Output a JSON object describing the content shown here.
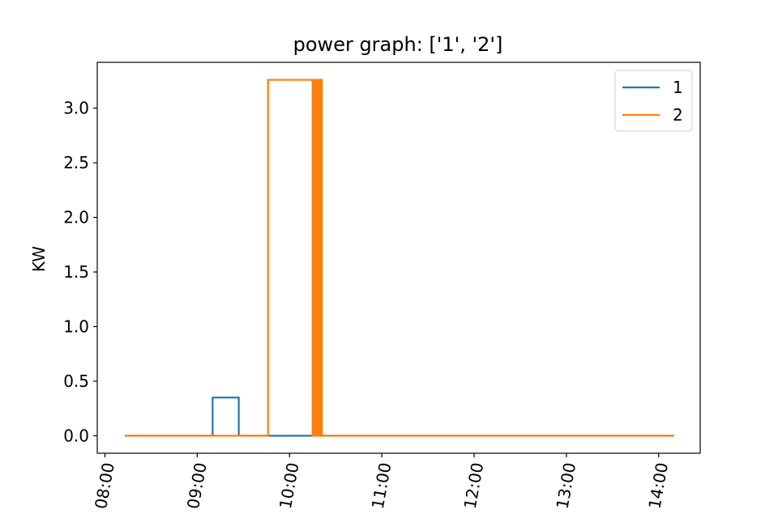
{
  "chart_data": {
    "type": "line",
    "title": "power graph: ['1', '2']",
    "xlabel": "",
    "ylabel": "KW",
    "xlim": [
      "07:55",
      "14:27"
    ],
    "ylim": [
      -0.16,
      3.42
    ],
    "x_ticks": [
      "08:00",
      "09:00",
      "10:00",
      "11:00",
      "12:00",
      "13:00",
      "14:00"
    ],
    "y_ticks": [
      "0.0",
      "0.5",
      "1.0",
      "1.5",
      "2.0",
      "2.5",
      "3.0"
    ],
    "grid": false,
    "legend_position": "top-right",
    "series": [
      {
        "name": "1",
        "color": "#1f77b4",
        "step": true,
        "points": [
          [
            "08:13",
            0.0
          ],
          [
            "09:10",
            0.0
          ],
          [
            "09:10",
            0.35
          ],
          [
            "09:27",
            0.35
          ],
          [
            "09:27",
            0.0
          ],
          [
            "14:10",
            0.0
          ]
        ]
      },
      {
        "name": "2",
        "color": "#ff7f0e",
        "step": true,
        "points": [
          [
            "08:13",
            0.0
          ],
          [
            "09:46",
            0.0
          ],
          [
            "09:46",
            3.26
          ],
          [
            "10:15",
            3.26
          ],
          [
            "10:15",
            0.0
          ],
          [
            "10:16",
            0.0
          ],
          [
            "10:16",
            3.26
          ],
          [
            "10:17",
            3.26
          ],
          [
            "10:17",
            0.0
          ],
          [
            "10:18",
            0.0
          ],
          [
            "10:18",
            3.26
          ],
          [
            "10:19",
            3.26
          ],
          [
            "10:19",
            0.0
          ],
          [
            "10:20",
            0.0
          ],
          [
            "10:20",
            3.26
          ],
          [
            "10:21",
            3.26
          ],
          [
            "10:21",
            0.0
          ],
          [
            "14:10",
            0.0
          ]
        ]
      }
    ]
  }
}
